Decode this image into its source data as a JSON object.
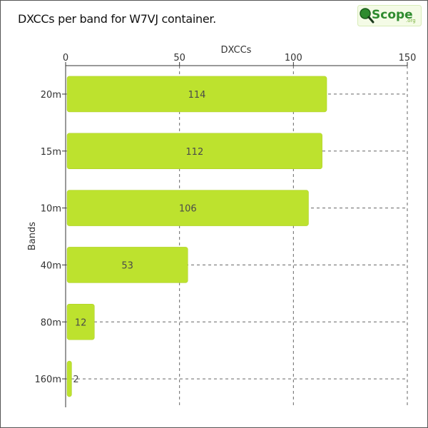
{
  "title": "DXCCs per band for W7VJ container.",
  "logo": {
    "main": "Scope",
    "suffix": ".org",
    "icon": "magnifier-icon"
  },
  "colors": {
    "bar": "#bde22e",
    "bar_edge": "#aacc22",
    "grid": "#666666",
    "axis": "#333333",
    "logo_green": "#2e8b2e"
  },
  "chart_data": {
    "type": "bar",
    "orientation": "horizontal",
    "categories": [
      "20m",
      "15m",
      "10m",
      "40m",
      "80m",
      "160m"
    ],
    "values": [
      114,
      112,
      106,
      53,
      12,
      2
    ],
    "xlabel": "DXCCs",
    "ylabel": "Bands",
    "xlim": [
      0,
      150
    ],
    "xticks": [
      0,
      50,
      100,
      150
    ],
    "x_axis_position": "top",
    "grid": true,
    "data_labels": [
      "114",
      "112",
      "106",
      "53",
      "12",
      "2"
    ]
  }
}
